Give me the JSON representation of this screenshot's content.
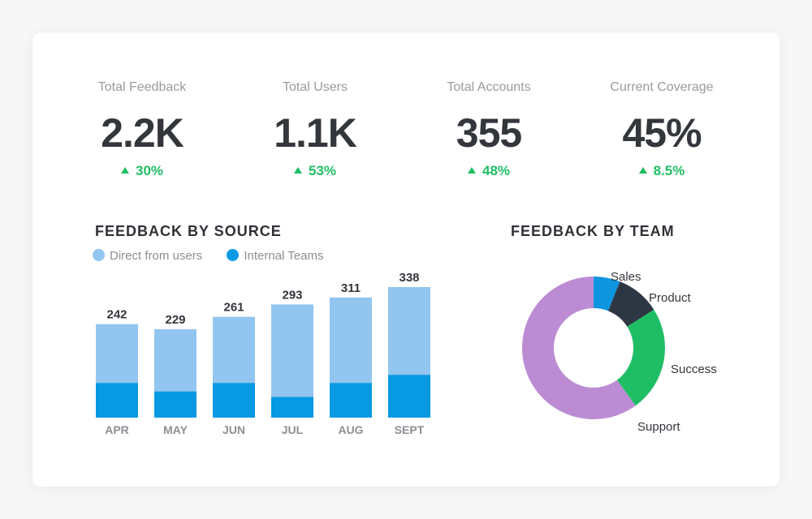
{
  "kpis": [
    {
      "label": "Total Feedback",
      "value": "2.2K",
      "change": "30%"
    },
    {
      "label": "Total Users",
      "value": "1.1K",
      "change": "53%"
    },
    {
      "label": "Total Accounts",
      "value": "355",
      "change": "48%"
    },
    {
      "label": "Current Coverage",
      "value": "45%",
      "change": "8.5%"
    }
  ],
  "colors": {
    "light_blue": "#92c5f0",
    "blue": "#0899e3",
    "sales": "#0d95e0",
    "product": "#2d3743",
    "success": "#1fbe64",
    "support": "#bb8cd3",
    "positive": "#1fbe64"
  },
  "chart_data": [
    {
      "type": "bar",
      "title": "FEEDBACK BY SOURCE",
      "stacked": true,
      "categories": [
        "APR",
        "MAY",
        "JUN",
        "JUL",
        "AUG",
        "SEPT"
      ],
      "totals": [
        "242",
        "229",
        "261",
        "293",
        "311",
        "338"
      ],
      "series": [
        {
          "name": "Internal Teams",
          "values": [
            90,
            68,
            90,
            54,
            90,
            111
          ]
        },
        {
          "name": "Direct from users",
          "values": [
            152,
            161,
            171,
            239,
            221,
            227
          ]
        }
      ],
      "legend": [
        "Direct from users",
        "Internal Teams"
      ],
      "ylim": [
        0,
        338
      ],
      "grid": false
    },
    {
      "type": "pie",
      "title": "FEEDBACK BY TEAM",
      "donut": true,
      "labels": [
        "Sales",
        "Product",
        "Success",
        "Support"
      ],
      "values": [
        6,
        10,
        24,
        60
      ]
    }
  ]
}
